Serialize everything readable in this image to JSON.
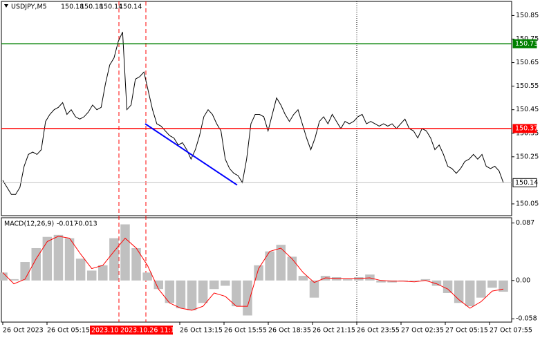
{
  "chart_data": [
    {
      "type": "line",
      "title": "USDJPY,M5",
      "ohlc": [
        150.18,
        150.18,
        150.14,
        150.14
      ],
      "color": "#000000",
      "values": [
        150.15,
        150.12,
        150.09,
        150.09,
        150.12,
        150.21,
        150.26,
        150.27,
        150.26,
        150.28,
        150.4,
        150.43,
        150.45,
        150.46,
        150.48,
        150.43,
        150.45,
        150.42,
        150.41,
        150.42,
        150.44,
        150.47,
        150.45,
        150.46,
        150.56,
        150.64,
        150.67,
        150.74,
        150.78,
        150.45,
        150.47,
        150.58,
        150.59,
        150.61,
        150.53,
        150.45,
        150.39,
        150.38,
        150.36,
        150.34,
        150.33,
        150.3,
        150.31,
        150.28,
        150.24,
        150.28,
        150.34,
        150.42,
        150.45,
        150.43,
        150.39,
        150.36,
        150.24,
        150.2,
        150.18,
        150.17,
        150.14,
        150.24,
        150.39,
        150.43,
        150.43,
        150.42,
        150.36,
        150.43,
        150.5,
        150.47,
        150.43,
        150.4,
        150.43,
        150.45,
        150.39,
        150.33,
        150.28,
        150.33,
        150.4,
        150.42,
        150.39,
        150.43,
        150.4,
        150.37,
        150.4,
        150.39,
        150.4,
        150.42,
        150.43,
        150.39,
        150.4,
        150.39,
        150.38,
        150.39,
        150.38,
        150.39,
        150.37,
        150.39,
        150.41,
        150.37,
        150.36,
        150.33,
        150.37,
        150.36,
        150.33,
        150.28,
        150.3,
        150.26,
        150.21,
        150.2,
        150.18,
        150.2,
        150.23,
        150.24,
        150.26,
        150.24,
        150.26,
        150.21,
        150.2,
        150.21,
        150.19,
        150.14
      ],
      "ylim": [
        150.0,
        150.91
      ],
      "yticks": [
        150.85,
        150.75,
        150.65,
        150.55,
        150.45,
        150.35,
        150.25,
        150.05
      ],
      "levels": [
        {
          "value": 150.73,
          "color": "#008000"
        },
        {
          "value": 150.37,
          "color": "#ff0000"
        },
        {
          "value": 150.14,
          "color": "#000000"
        }
      ],
      "trend_line": {
        "color": "#0000ff",
        "values": [
          150.39,
          150.13
        ]
      }
    },
    {
      "type": "macd",
      "title": "MACD(12,26,9)",
      "readout": [
        -0.017,
        -0.013
      ],
      "histogram": {
        "color": "#c0c0c0",
        "values": [
          0.012,
          0.002,
          0.028,
          0.049,
          0.066,
          0.069,
          0.064,
          0.033,
          0.015,
          0.023,
          0.064,
          0.085,
          0.049,
          0.012,
          -0.013,
          -0.034,
          -0.042,
          -0.045,
          -0.034,
          -0.013,
          -0.008,
          -0.039,
          -0.053,
          0.023,
          0.044,
          0.054,
          0.036,
          0.007,
          -0.026,
          0.007,
          0.005,
          0.002,
          0.005,
          0.009,
          -0.003,
          -0.003,
          -0.001,
          -0.001,
          0.002,
          -0.008,
          -0.019,
          -0.034,
          -0.039,
          -0.026,
          -0.011,
          -0.017
        ]
      },
      "signal": {
        "color": "#ff0000",
        "values": [
          0.012,
          -0.005,
          0.002,
          0.033,
          0.059,
          0.067,
          0.064,
          0.04,
          0.018,
          0.023,
          0.044,
          0.064,
          0.049,
          0.023,
          -0.013,
          -0.034,
          -0.042,
          -0.045,
          -0.039,
          -0.019,
          -0.024,
          -0.039,
          -0.039,
          0.018,
          0.044,
          0.049,
          0.033,
          0.012,
          -0.003,
          0.004,
          0.003,
          0.003,
          0.003,
          0.004,
          0.0,
          -0.001,
          -0.001,
          -0.002,
          0.0,
          -0.005,
          -0.013,
          -0.029,
          -0.042,
          -0.032,
          -0.016,
          -0.013
        ]
      },
      "ylim": [
        -0.063,
        0.095
      ],
      "yticks": [
        0.087,
        {
          "value": 0,
          "label": "0.00"
        },
        -0.058
      ],
      "x_labels": [
        "26 Oct 2023",
        "26 Oct 05:15",
        "26 Oct 13:15",
        "26 Oct 15:55",
        "26 Oct 18:35",
        "26 Oct 21:15",
        "26 Oct 23:55",
        "27 Oct 02:35",
        "27 Oct 05:15",
        "27 Oct 07:55"
      ],
      "markers": [
        {
          "label": "2023.10.",
          "color": "#ff0000"
        },
        {
          "label": "2023.10.26 11:15",
          "color": "#ff0000"
        }
      ]
    }
  ]
}
